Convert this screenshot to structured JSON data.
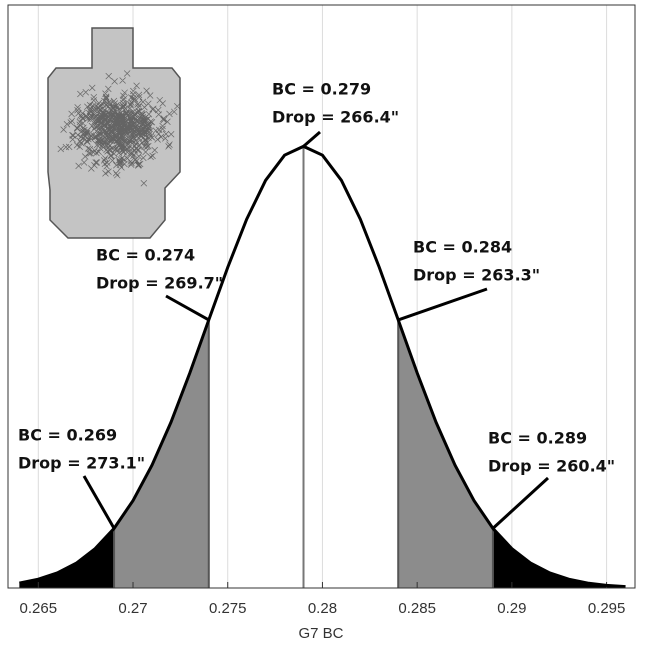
{
  "chart_data": {
    "type": "area",
    "xlabel": "G7 BC",
    "xlim": [
      0.2634,
      0.2965
    ],
    "xticks": [
      0.265,
      0.27,
      0.275,
      0.28,
      0.285,
      0.29,
      0.295
    ],
    "ylim": [
      0,
      1.32
    ],
    "grid": true,
    "curve": {
      "color": "#000000",
      "x": [
        0.264,
        0.265,
        0.266,
        0.267,
        0.268,
        0.269,
        0.27,
        0.271,
        0.272,
        0.273,
        0.274,
        0.275,
        0.276,
        0.277,
        0.278,
        0.279,
        0.28,
        0.281,
        0.282,
        0.283,
        0.284,
        0.285,
        0.286,
        0.287,
        0.288,
        0.289,
        0.29,
        0.291,
        0.292,
        0.293,
        0.294,
        0.295,
        0.296
      ],
      "values": [
        0.011,
        0.02,
        0.034,
        0.056,
        0.089,
        0.135,
        0.198,
        0.278,
        0.375,
        0.487,
        0.607,
        0.726,
        0.835,
        0.923,
        0.98,
        1,
        0.98,
        0.923,
        0.835,
        0.726,
        0.607,
        0.487,
        0.375,
        0.278,
        0.198,
        0.135,
        0.089,
        0.056,
        0.034,
        0.02,
        0.011,
        0.006,
        0.003
      ]
    },
    "regions": [
      {
        "from": 0.264,
        "to": 0.269,
        "color": "#000000"
      },
      {
        "from": 0.269,
        "to": 0.274,
        "color": "#8c8c8c"
      },
      {
        "from": 0.284,
        "to": 0.289,
        "color": "#8c8c8c"
      },
      {
        "from": 0.289,
        "to": 0.296,
        "color": "#000000"
      }
    ],
    "annotations": [
      {
        "x": 0.279,
        "lines": [
          "BC = 0.279",
          "Drop = 266.4\""
        ]
      },
      {
        "x": 0.274,
        "lines": [
          "BC = 0.274",
          "Drop = 269.7\""
        ]
      },
      {
        "x": 0.284,
        "lines": [
          "BC = 0.284",
          "Drop = 263.3\""
        ]
      },
      {
        "x": 0.269,
        "lines": [
          "BC = 0.269",
          "Drop = 273.1\""
        ]
      },
      {
        "x": 0.289,
        "lines": [
          "BC = 0.289",
          "Drop = 260.4\""
        ]
      }
    ]
  }
}
